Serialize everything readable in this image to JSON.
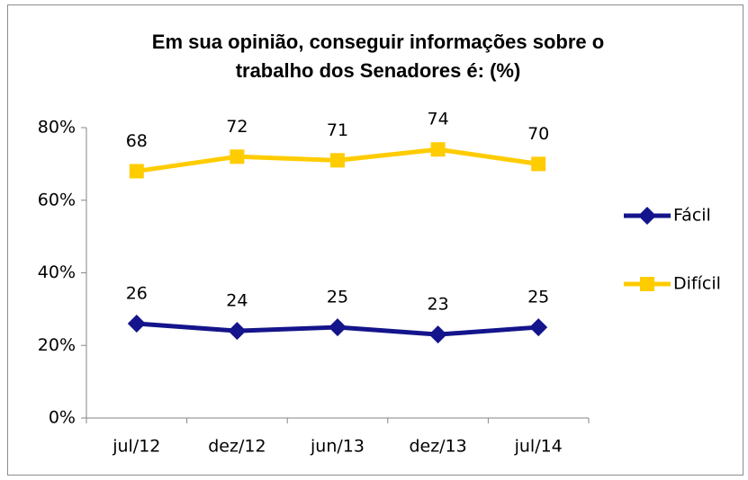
{
  "chart_data": {
    "type": "line",
    "title": [
      "Em sua opinião, conseguir informações sobre o",
      "trabalho dos Senadores é: (%)"
    ],
    "categories": [
      "jul/12",
      "dez/12",
      "jun/13",
      "dez/13",
      "jul/14"
    ],
    "series": [
      {
        "name": "Fácil",
        "color": "#14148c",
        "marker": "diamond",
        "values": [
          26,
          24,
          25,
          23,
          25
        ]
      },
      {
        "name": "Difícil",
        "color": "#ffcc00",
        "marker": "square",
        "values": [
          68,
          72,
          71,
          74,
          70
        ]
      }
    ],
    "ylim": [
      0,
      80
    ],
    "yticks": [
      {
        "value": 0,
        "label": "0%"
      },
      {
        "value": 20,
        "label": "20%"
      },
      {
        "value": 40,
        "label": "40%"
      },
      {
        "value": 60,
        "label": "60%"
      },
      {
        "value": 80,
        "label": "80%"
      }
    ],
    "grid": false,
    "legend": "right"
  }
}
